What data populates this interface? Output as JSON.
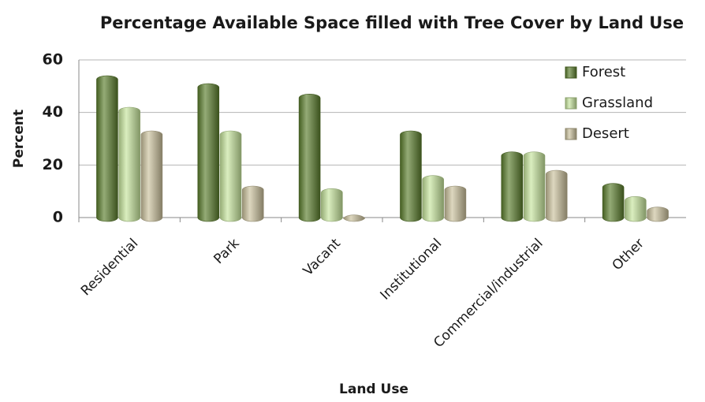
{
  "chart_data": {
    "type": "bar",
    "title": "Percentage Available Space filled with Tree Cover by Land Use",
    "x_label": "Land Use",
    "y_label": "Percent",
    "categories": [
      "Residential",
      "Park",
      "Vacant",
      "Institutional",
      "Commercial/industrial",
      "Other"
    ],
    "series": [
      {
        "name": "Forest",
        "color": "#5b7d2c",
        "values": [
          54,
          51,
          47,
          33,
          25,
          13
        ]
      },
      {
        "name": "Grassland",
        "color": "#c6e59c",
        "values": [
          42,
          33,
          11,
          16,
          25,
          8
        ]
      },
      {
        "name": "Desert",
        "color": "#cbc19c",
        "values": [
          33,
          12,
          1,
          12,
          18,
          4
        ]
      }
    ],
    "ylim": [
      0,
      60
    ],
    "yticks": [
      0,
      20,
      40,
      60
    ],
    "grid": true,
    "legend": "top-right"
  }
}
